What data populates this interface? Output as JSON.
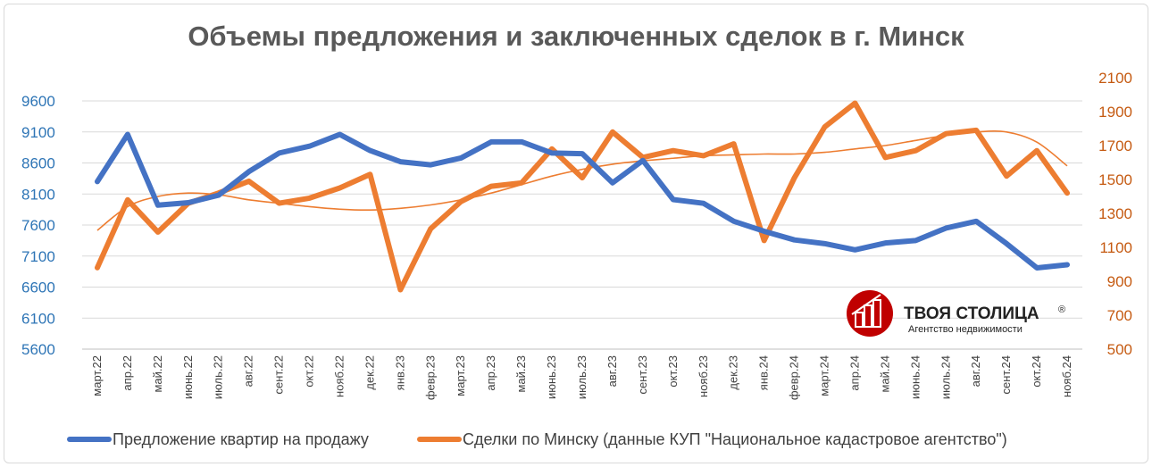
{
  "chart_data": {
    "type": "line",
    "title": "Объемы предложения и заключенных сделок в г. Минск",
    "categories": [
      "март.22",
      "апр.22",
      "май.22",
      "июнь.22",
      "июль.22",
      "авг.22",
      "сент.22",
      "окт.22",
      "нояб.22",
      "дек.22",
      "янв.23",
      "февр.23",
      "март.23",
      "апр.23",
      "май.23",
      "июнь.23",
      "июль.23",
      "авг.23",
      "сент.23",
      "окт.23",
      "нояб.23",
      "дек.23",
      "янв.24",
      "февр.24",
      "март.24",
      "апр.24",
      "май.24",
      "июнь.24",
      "июль.24",
      "авг.24",
      "сент.24",
      "окт.24",
      "нояб.24"
    ],
    "y_left": {
      "min": 5600,
      "max": 9600,
      "ticks": [
        "9600",
        "9100",
        "8600",
        "8100",
        "7600",
        "7100",
        "6600",
        "6100",
        "5600"
      ]
    },
    "y_right": {
      "min": 500,
      "max": 2100,
      "ticks": [
        "2100",
        "1900",
        "1700",
        "1500",
        "1300",
        "1100",
        "900",
        "700",
        "500"
      ]
    },
    "series": [
      {
        "name": "Предложение квартир на продажу",
        "axis": "left",
        "color": "#4472c4",
        "values": [
          8300,
          9060,
          7920,
          7960,
          8080,
          8460,
          8760,
          8870,
          9060,
          8800,
          8620,
          8570,
          8680,
          8940,
          8940,
          8760,
          8750,
          8280,
          8640,
          8010,
          7950,
          7660,
          7500,
          7360,
          7300,
          7200,
          7310,
          7350,
          7550,
          7660,
          7300,
          6910,
          6960
        ]
      },
      {
        "name": "Сделки по Минску (данные КУП \"Национальное кадастровое агентство\")",
        "axis": "right",
        "color": "#ed7d31",
        "values": [
          980,
          1380,
          1190,
          1360,
          1420,
          1490,
          1360,
          1390,
          1450,
          1530,
          850,
          1210,
          1370,
          1460,
          1480,
          1680,
          1510,
          1780,
          1630,
          1670,
          1640,
          1710,
          1140,
          1510,
          1810,
          1950,
          1630,
          1670,
          1770,
          1790,
          1520,
          1670,
          1420
        ]
      },
      {
        "name": "",
        "axis": "right",
        "color": "#ed7d31",
        "role": "trendline",
        "values": [
          1200,
          1340,
          1400,
          1420,
          1410,
          1380,
          1360,
          1340,
          1325,
          1320,
          1330,
          1350,
          1380,
          1420,
          1470,
          1520,
          1560,
          1590,
          1610,
          1625,
          1640,
          1645,
          1650,
          1650,
          1660,
          1680,
          1700,
          1730,
          1760,
          1780,
          1780,
          1720,
          1580
        ]
      }
    ]
  },
  "legend": {
    "items": [
      {
        "label": "Предложение квартир на продажу",
        "color": "#4472c4"
      },
      {
        "label": "Сделки по Минску (данные КУП \"Национальное кадастровое агентство\")",
        "color": "#ed7d31"
      }
    ]
  },
  "logo": {
    "name": "ТВОЯ СТОЛИЦА",
    "registered": "®",
    "tagline": "Агентство недвижимости",
    "color": "#c00000"
  }
}
